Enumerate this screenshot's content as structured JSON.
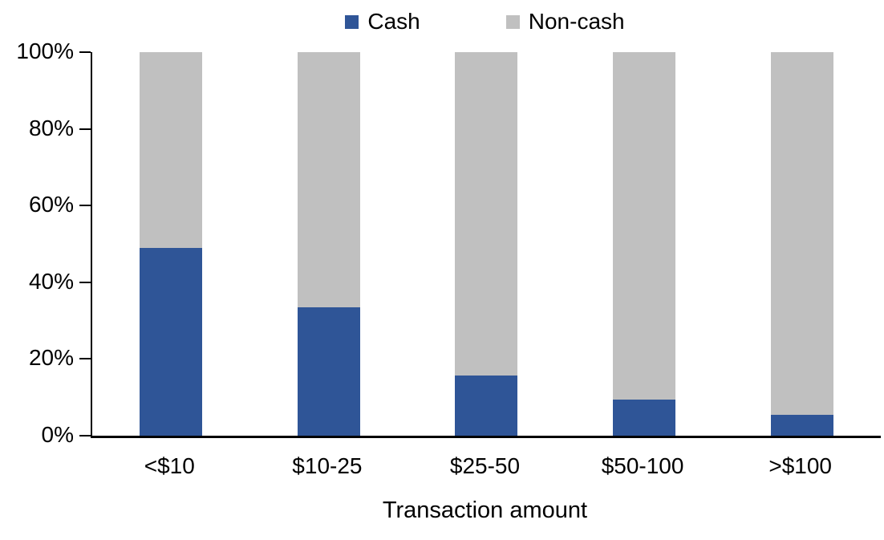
{
  "chart_data": {
    "type": "bar",
    "stacked": true,
    "categories": [
      "<$10",
      "$10-25",
      "$25-50",
      "$50-100",
      ">$100"
    ],
    "series": [
      {
        "name": "Cash",
        "color": "#2F5597",
        "values": [
          49,
          33.5,
          15.7,
          9.5,
          5.5
        ]
      },
      {
        "name": "Non-cash",
        "color": "#C0C0C0",
        "values": [
          51,
          66.5,
          84.3,
          90.5,
          94.5
        ]
      }
    ],
    "xlabel": "Transaction amount",
    "ylabel": "",
    "ylim": [
      0,
      100
    ],
    "yticks": [
      "0%",
      "20%",
      "40%",
      "60%",
      "80%",
      "100%"
    ],
    "legend_position": "top",
    "grid": false,
    "axis_color": "#000000",
    "background_color": "#FFFFFF"
  }
}
